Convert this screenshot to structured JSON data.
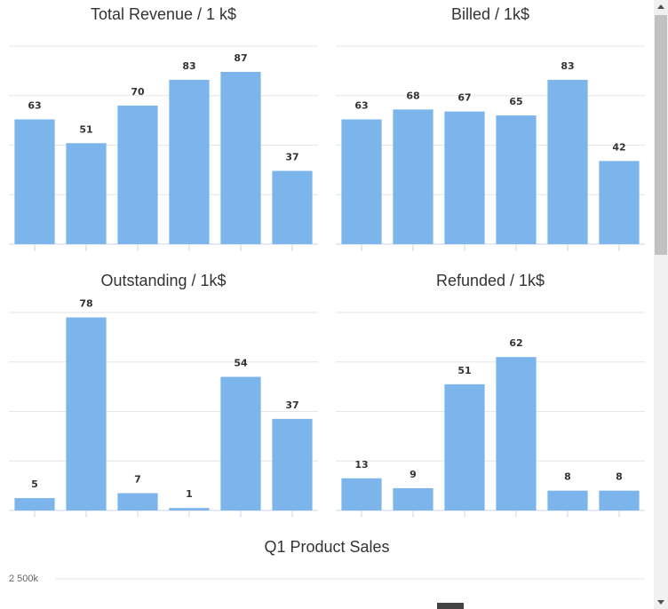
{
  "charts": [
    {
      "title": "Total Revenue / 1 k$"
    },
    {
      "title": "Billed / 1k$"
    },
    {
      "title": "Outstanding / 1k$"
    },
    {
      "title": "Refunded / 1k$"
    },
    {
      "title": "Q1 Product Sales"
    }
  ],
  "colors": {
    "bar": "#7cb5ec",
    "grid": "#e6e6e6",
    "axis": "#ccd6eb",
    "text": "#333333"
  },
  "chart_data": [
    {
      "type": "bar",
      "title": "Total Revenue / 1 k$",
      "values": [
        63,
        51,
        70,
        83,
        87,
        37
      ],
      "ylim": [
        0,
        100
      ],
      "grid": true
    },
    {
      "type": "bar",
      "title": "Billed / 1k$",
      "values": [
        63,
        68,
        67,
        65,
        83,
        42
      ],
      "ylim": [
        0,
        100
      ],
      "grid": true
    },
    {
      "type": "bar",
      "title": "Outstanding / 1k$",
      "values": [
        5,
        78,
        7,
        1,
        54,
        37
      ],
      "ylim": [
        0,
        80
      ],
      "grid": true
    },
    {
      "type": "bar",
      "title": "Refunded / 1k$",
      "values": [
        13,
        9,
        51,
        62,
        8,
        8
      ],
      "ylim": [
        0,
        80
      ],
      "grid": true
    },
    {
      "type": "bar",
      "title": "Q1 Product Sales",
      "y_ticks": [
        "2 500k"
      ],
      "values": [],
      "grid": true
    }
  ],
  "scrollbar": {
    "up_icon": "scroll-up-arrow-icon",
    "down_icon": "scroll-down-arrow-icon"
  }
}
